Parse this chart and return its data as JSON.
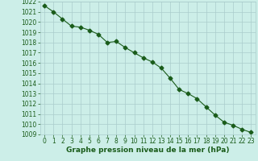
{
  "x": [
    0,
    1,
    2,
    3,
    4,
    5,
    6,
    7,
    8,
    9,
    10,
    11,
    12,
    13,
    14,
    15,
    16,
    17,
    18,
    19,
    20,
    21,
    22,
    23
  ],
  "y": [
    1021.6,
    1021.0,
    1020.3,
    1019.6,
    1019.5,
    1019.2,
    1018.8,
    1018.0,
    1018.1,
    1017.5,
    1017.0,
    1016.5,
    1016.1,
    1015.5,
    1014.5,
    1013.4,
    1013.0,
    1012.5,
    1011.7,
    1010.9,
    1010.2,
    1009.9,
    1009.5,
    1009.2
  ],
  "ylim": [
    1009,
    1022
  ],
  "xlim": [
    -0.5,
    23.5
  ],
  "yticks": [
    1009,
    1010,
    1011,
    1012,
    1013,
    1014,
    1015,
    1016,
    1017,
    1018,
    1019,
    1020,
    1021,
    1022
  ],
  "xticks": [
    0,
    1,
    2,
    3,
    4,
    5,
    6,
    7,
    8,
    9,
    10,
    11,
    12,
    13,
    14,
    15,
    16,
    17,
    18,
    19,
    20,
    21,
    22,
    23
  ],
  "line_color": "#1a5c1a",
  "marker": "D",
  "marker_size": 2.5,
  "line_width": 0.8,
  "bg_color": "#cceee8",
  "grid_color": "#aacccc",
  "xlabel": "Graphe pression niveau de la mer (hPa)",
  "xlabel_color": "#1a5c1a",
  "tick_color": "#1a5c1a",
  "label_fontsize": 5.5,
  "xlabel_fontsize": 6.5
}
